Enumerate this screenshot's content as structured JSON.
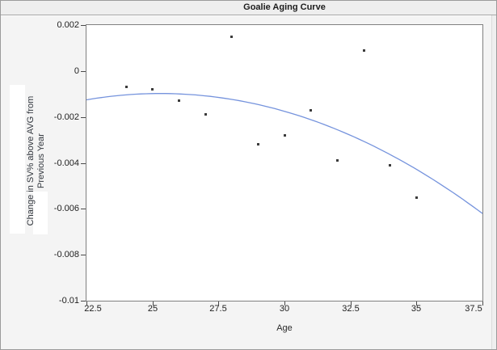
{
  "window": {
    "title": "Goalie Aging Curve"
  },
  "chart_data": {
    "type": "scatter",
    "title": "Goalie Aging Curve",
    "xlabel": "Age",
    "ylabel": "Change in SV% above AVG from Previous Year",
    "ylabel_lines": [
      "Change in SV% above AVG from",
      "Previous Year"
    ],
    "xlim": [
      22.5,
      37.5
    ],
    "ylim": [
      -0.01,
      0.002
    ],
    "grid": false,
    "legend_position": "none",
    "xticks": [
      {
        "value": 22.5,
        "label": "22.5"
      },
      {
        "value": 25,
        "label": "25"
      },
      {
        "value": 27.5,
        "label": "27.5"
      },
      {
        "value": 30,
        "label": "30"
      },
      {
        "value": 32.5,
        "label": "32.5"
      },
      {
        "value": 35,
        "label": "35"
      },
      {
        "value": 37.5,
        "label": "37.5"
      }
    ],
    "yticks": [
      {
        "value": 0.002,
        "label": "0.002"
      },
      {
        "value": 0,
        "label": "0"
      },
      {
        "value": -0.002,
        "label": "-0.002"
      },
      {
        "value": -0.004,
        "label": "-0.004"
      },
      {
        "value": -0.006,
        "label": "-0.006"
      },
      {
        "value": -0.008,
        "label": "-0.008"
      },
      {
        "value": -0.01,
        "label": "-0.01"
      }
    ],
    "points": [
      {
        "x": 24,
        "y": -0.0007
      },
      {
        "x": 25,
        "y": -0.0008
      },
      {
        "x": 26,
        "y": -0.0013
      },
      {
        "x": 27,
        "y": -0.0019
      },
      {
        "x": 28,
        "y": 0.0015
      },
      {
        "x": 29,
        "y": -0.0032
      },
      {
        "x": 30,
        "y": -0.0028
      },
      {
        "x": 31,
        "y": -0.0017
      },
      {
        "x": 32,
        "y": -0.0039
      },
      {
        "x": 33,
        "y": 0.0009
      },
      {
        "x": 34,
        "y": -0.0041
      },
      {
        "x": 35,
        "y": -0.0055
      }
    ],
    "fit_curve": {
      "type": "quadratic",
      "equation": "y = k + a*(x-h)^2",
      "a": -3.51e-05,
      "h": 25.3,
      "k": -0.00098,
      "x_start": 22.5,
      "x_end": 37.5
    },
    "colors": {
      "curve": "#7593dd",
      "marker": "#3b3b3b",
      "plot_border": "#808080",
      "tick": "#4a4a4a"
    }
  }
}
